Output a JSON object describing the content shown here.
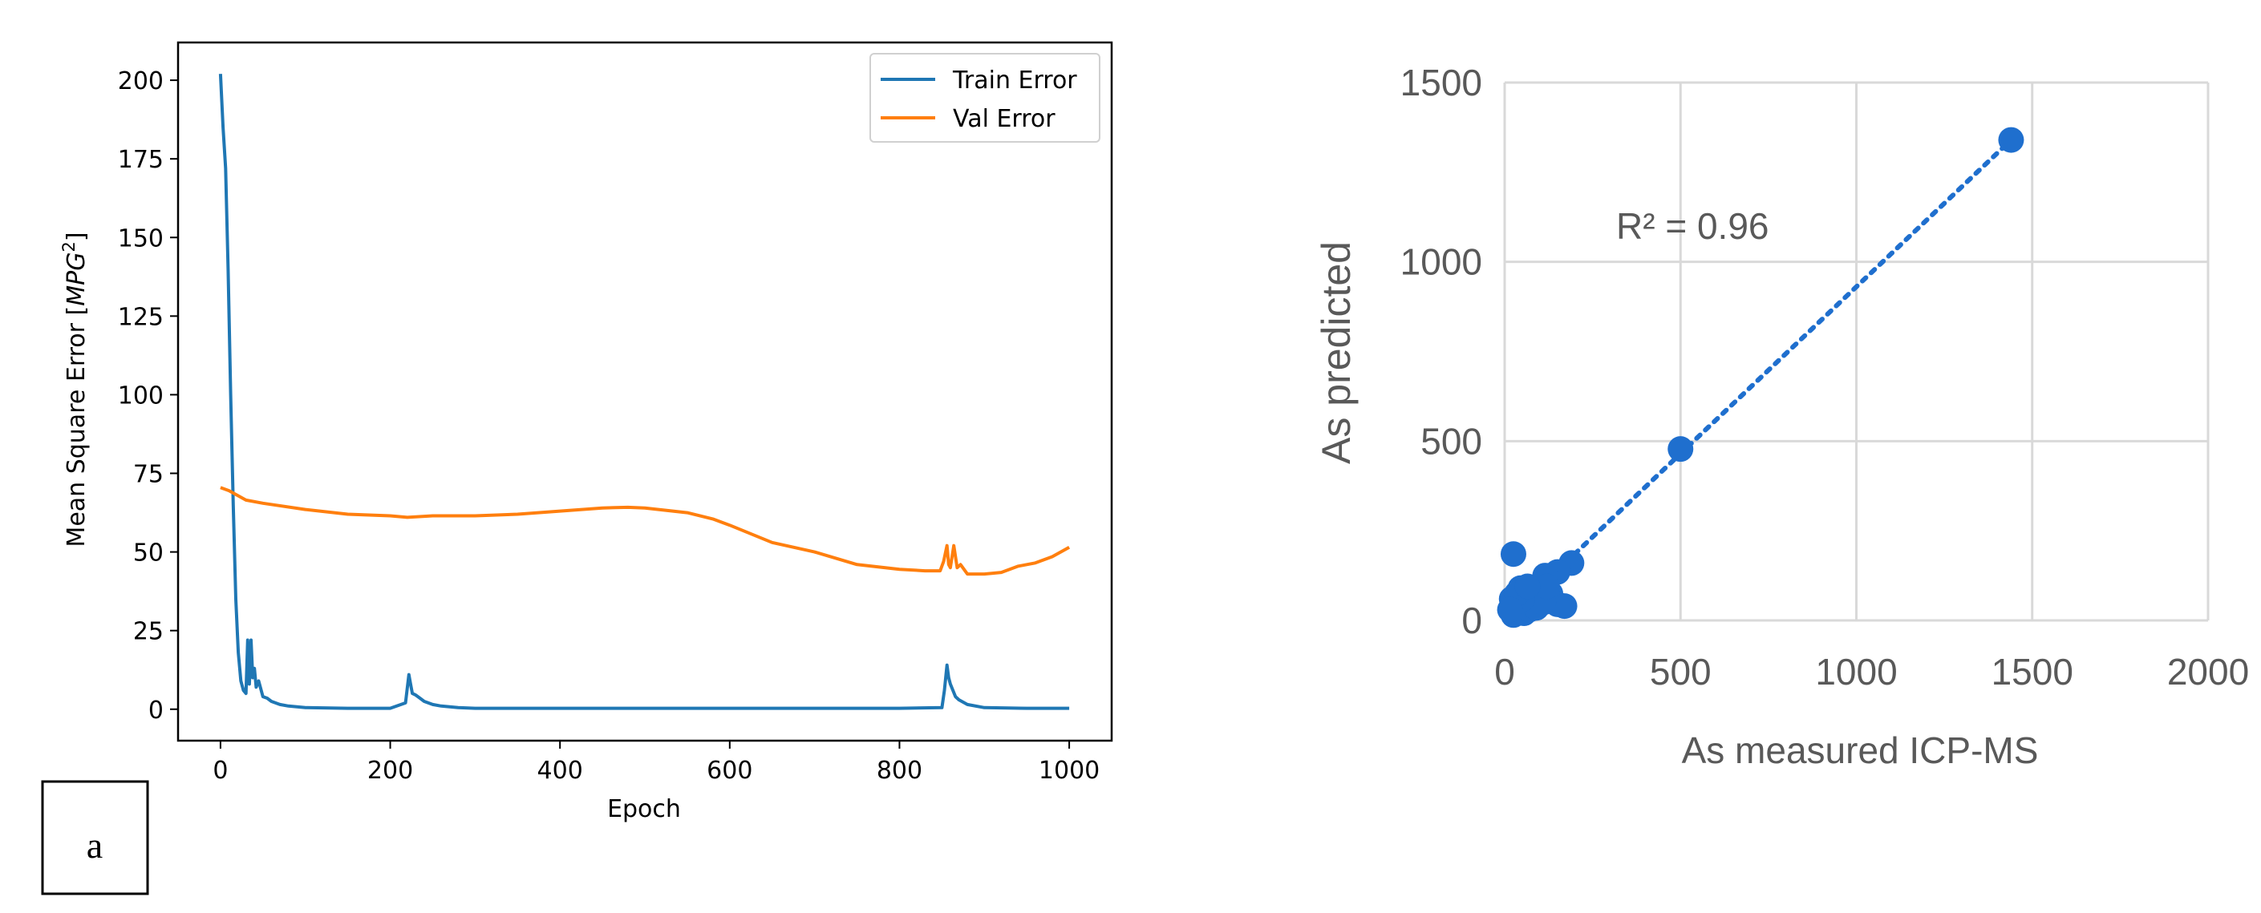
{
  "panel_label": "a",
  "chart_data": [
    {
      "type": "line",
      "xlabel": "Epoch",
      "ylabel": "Mean Square Error [MPG²]",
      "ylabel_base": "Mean Square Error [",
      "ylabel_var": "MPG",
      "ylabel_sup": "2",
      "ylabel_close": "]",
      "xlim": [
        -50,
        1050
      ],
      "ylim": [
        -10,
        212
      ],
      "xticks": [
        0,
        200,
        400,
        600,
        800,
        1000
      ],
      "yticks": [
        0,
        25,
        50,
        75,
        100,
        125,
        150,
        175,
        200
      ],
      "grid": false,
      "legend_position": "top-right",
      "series": [
        {
          "name": "Train Error",
          "color": "#1f77b4",
          "x": [
            0,
            3,
            6,
            9,
            12,
            15,
            18,
            21,
            24,
            27,
            30,
            32,
            34,
            36,
            38,
            40,
            42,
            45,
            50,
            55,
            60,
            70,
            80,
            100,
            150,
            200,
            218,
            222,
            224,
            226,
            230,
            235,
            240,
            250,
            260,
            280,
            300,
            400,
            500,
            600,
            700,
            800,
            850,
            853,
            856,
            858,
            860,
            863,
            866,
            870,
            880,
            900,
            950,
            1000
          ],
          "y": [
            202,
            185,
            172,
            140,
            100,
            65,
            35,
            18,
            9,
            6,
            5,
            22,
            8,
            22,
            10,
            13,
            7,
            9,
            4,
            3.5,
            2.5,
            1.5,
            1.0,
            0.5,
            0.3,
            0.3,
            2,
            11,
            8,
            5,
            4.5,
            3.5,
            2.5,
            1.5,
            1.0,
            0.5,
            0.3,
            0.3,
            0.3,
            0.3,
            0.3,
            0.3,
            0.5,
            6,
            14,
            10,
            8,
            6,
            4,
            3,
            1.5,
            0.5,
            0.3,
            0.3
          ]
        },
        {
          "name": "Val Error",
          "color": "#ff7f0e",
          "x": [
            0,
            10,
            20,
            30,
            50,
            100,
            150,
            200,
            220,
            250,
            300,
            350,
            400,
            450,
            480,
            500,
            550,
            580,
            600,
            650,
            700,
            750,
            800,
            830,
            848,
            852,
            856,
            858,
            860,
            864,
            868,
            872,
            880,
            900,
            920,
            940,
            960,
            980,
            1000
          ],
          "y": [
            70.5,
            69.5,
            68,
            66.5,
            65.5,
            63.5,
            62,
            61.5,
            61,
            61.5,
            61.5,
            62,
            63,
            64,
            64.2,
            64,
            62.5,
            60.5,
            58.5,
            53,
            50,
            46,
            44.5,
            44,
            44,
            47,
            52,
            46,
            45,
            52,
            45,
            46,
            43,
            43,
            43.5,
            45.5,
            46.5,
            48.5,
            51.5
          ]
        }
      ]
    },
    {
      "type": "scatter",
      "xlabel": "As measured ICP-MS",
      "ylabel": "As predicted",
      "xlim": [
        0,
        2000
      ],
      "ylim": [
        0,
        1500
      ],
      "xticks": [
        0,
        500,
        1000,
        1500,
        2000
      ],
      "yticks": [
        0,
        500,
        1000,
        1500
      ],
      "grid": true,
      "marker_color": "#1f6fce",
      "annotation": "R² = 0.96",
      "trendline": "linear, dotted",
      "trendline_range": [
        0,
        1440
      ],
      "points": [
        [
          1440,
          1340
        ],
        [
          500,
          478
        ],
        [
          25,
          185
        ],
        [
          190,
          160
        ],
        [
          150,
          135
        ],
        [
          115,
          125
        ],
        [
          45,
          90
        ],
        [
          20,
          60
        ],
        [
          30,
          40
        ],
        [
          60,
          45
        ],
        [
          80,
          70
        ],
        [
          100,
          55
        ],
        [
          130,
          75
        ],
        [
          150,
          45
        ],
        [
          170,
          40
        ],
        [
          25,
          15
        ],
        [
          40,
          25
        ],
        [
          55,
          20
        ],
        [
          70,
          30
        ],
        [
          90,
          35
        ],
        [
          110,
          50
        ],
        [
          50,
          60
        ],
        [
          35,
          75
        ],
        [
          120,
          95
        ],
        [
          15,
          30
        ],
        [
          65,
          95
        ]
      ],
      "trendline_fit": {
        "slope": 0.9305,
        "intercept": 0
      }
    }
  ]
}
